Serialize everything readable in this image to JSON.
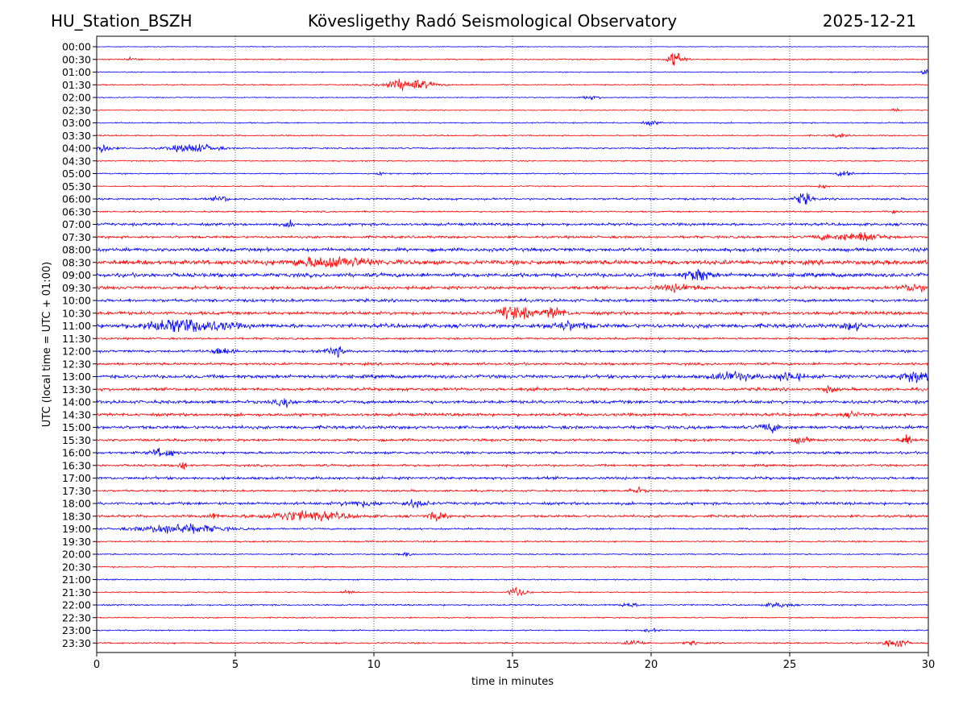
{
  "header": {
    "station": "HU_Station_BSZH",
    "observatory": "Kövesligethy Radó Seismological Observatory",
    "date": "2025-12-21"
  },
  "chart_data": {
    "type": "line",
    "title": "Kövesligethy Radó Seismological Observatory",
    "xlabel": "time in minutes",
    "ylabel": "UTC (local time = UTC + 01:00)",
    "xlim": [
      0,
      30
    ],
    "xticks": [
      "0",
      "5",
      "10",
      "15",
      "20",
      "25",
      "30"
    ],
    "grid": "vertical dotted at 5-minute intervals",
    "colors": {
      "even_row": "#0000ff",
      "odd_row": "#ff0000",
      "axis": "#000000"
    },
    "rows": [
      {
        "label": "00:00",
        "noise": 0.3,
        "events": []
      },
      {
        "label": "00:30",
        "noise": 0.5,
        "events": [
          {
            "t": 20.9,
            "amp": 7,
            "dur": 0.4
          },
          {
            "t": 1.3,
            "amp": 1.5,
            "dur": 0.3
          }
        ]
      },
      {
        "label": "01:00",
        "noise": 0.4,
        "events": [
          {
            "t": 29.9,
            "amp": 2,
            "dur": 0.2
          }
        ]
      },
      {
        "label": "01:30",
        "noise": 0.5,
        "events": [
          {
            "t": 11.2,
            "amp": 5,
            "dur": 1.2
          }
        ]
      },
      {
        "label": "02:00",
        "noise": 0.4,
        "events": [
          {
            "t": 17.8,
            "amp": 1.5,
            "dur": 0.5
          }
        ]
      },
      {
        "label": "02:30",
        "noise": 0.4,
        "events": [
          {
            "t": 28.8,
            "amp": 1.5,
            "dur": 0.2
          }
        ]
      },
      {
        "label": "03:00",
        "noise": 0.5,
        "events": [
          {
            "t": 20.0,
            "amp": 1.5,
            "dur": 0.4
          }
        ]
      },
      {
        "label": "03:30",
        "noise": 0.5,
        "events": [
          {
            "t": 26.8,
            "amp": 1.5,
            "dur": 0.4
          }
        ]
      },
      {
        "label": "04:00",
        "noise": 0.6,
        "events": [
          {
            "t": 0.2,
            "amp": 3.5,
            "dur": 0.5
          },
          {
            "t": 3.5,
            "amp": 3.5,
            "dur": 1.2
          }
        ]
      },
      {
        "label": "04:30",
        "noise": 0.5,
        "events": []
      },
      {
        "label": "05:00",
        "noise": 0.5,
        "events": [
          {
            "t": 27.0,
            "amp": 2.5,
            "dur": 0.4
          },
          {
            "t": 10.2,
            "amp": 1.5,
            "dur": 0.2
          }
        ]
      },
      {
        "label": "05:30",
        "noise": 0.5,
        "events": [
          {
            "t": 26.2,
            "amp": 2,
            "dur": 0.2
          }
        ]
      },
      {
        "label": "06:00",
        "noise": 0.8,
        "events": [
          {
            "t": 25.5,
            "amp": 5,
            "dur": 0.4
          },
          {
            "t": 4.5,
            "amp": 2,
            "dur": 0.4
          }
        ]
      },
      {
        "label": "06:30",
        "noise": 0.6,
        "events": [
          {
            "t": 28.7,
            "amp": 1.5,
            "dur": 0.3
          }
        ]
      },
      {
        "label": "07:00",
        "noise": 1.1,
        "events": [
          {
            "t": 7.0,
            "amp": 2,
            "dur": 0.3
          }
        ]
      },
      {
        "label": "07:30",
        "noise": 1.0,
        "events": [
          {
            "t": 27.6,
            "amp": 4,
            "dur": 1.0
          },
          {
            "t": 26.3,
            "amp": 2,
            "dur": 0.6
          }
        ]
      },
      {
        "label": "08:00",
        "noise": 1.4,
        "events": []
      },
      {
        "label": "08:30",
        "noise": 1.8,
        "events": [
          {
            "t": 8.5,
            "amp": 4,
            "dur": 2.0
          }
        ]
      },
      {
        "label": "09:00",
        "noise": 1.6,
        "events": [
          {
            "t": 21.7,
            "amp": 5,
            "dur": 0.6
          }
        ]
      },
      {
        "label": "09:30",
        "noise": 1.3,
        "events": [
          {
            "t": 29.5,
            "amp": 3,
            "dur": 0.6
          },
          {
            "t": 21.0,
            "amp": 2.5,
            "dur": 1.0
          }
        ]
      },
      {
        "label": "10:00",
        "noise": 1.2,
        "events": []
      },
      {
        "label": "10:30",
        "noise": 1.3,
        "events": [
          {
            "t": 14.8,
            "amp": 5,
            "dur": 0.4
          },
          {
            "t": 15.3,
            "amp": 5,
            "dur": 0.6
          },
          {
            "t": 16.5,
            "amp": 5,
            "dur": 0.5
          }
        ]
      },
      {
        "label": "11:00",
        "noise": 1.6,
        "events": [
          {
            "t": 3.2,
            "amp": 6,
            "dur": 2.0
          },
          {
            "t": 17.0,
            "amp": 3,
            "dur": 1.0
          },
          {
            "t": 27.3,
            "amp": 3,
            "dur": 0.5
          }
        ]
      },
      {
        "label": "11:30",
        "noise": 0.8,
        "events": []
      },
      {
        "label": "12:00",
        "noise": 1.0,
        "events": [
          {
            "t": 8.6,
            "amp": 5,
            "dur": 0.4
          },
          {
            "t": 4.6,
            "amp": 3,
            "dur": 0.6
          }
        ]
      },
      {
        "label": "12:30",
        "noise": 1.0,
        "events": []
      },
      {
        "label": "13:00",
        "noise": 1.4,
        "events": [
          {
            "t": 29.6,
            "amp": 5,
            "dur": 0.8
          },
          {
            "t": 25.0,
            "amp": 4,
            "dur": 0.6
          },
          {
            "t": 23.0,
            "amp": 3,
            "dur": 1.0
          }
        ]
      },
      {
        "label": "13:30",
        "noise": 1.2,
        "events": [
          {
            "t": 26.4,
            "amp": 2.5,
            "dur": 0.3
          },
          {
            "t": 15.8,
            "amp": 2,
            "dur": 0.3
          }
        ]
      },
      {
        "label": "14:00",
        "noise": 1.3,
        "events": [
          {
            "t": 6.8,
            "amp": 3.5,
            "dur": 0.4
          }
        ]
      },
      {
        "label": "14:30",
        "noise": 1.2,
        "events": [
          {
            "t": 27.3,
            "amp": 2,
            "dur": 0.4
          }
        ]
      },
      {
        "label": "15:00",
        "noise": 1.3,
        "events": [
          {
            "t": 24.3,
            "amp": 3.5,
            "dur": 0.5
          }
        ]
      },
      {
        "label": "15:30",
        "noise": 1.0,
        "events": [
          {
            "t": 29.2,
            "amp": 3.5,
            "dur": 0.3
          },
          {
            "t": 25.4,
            "amp": 2.5,
            "dur": 0.4
          }
        ]
      },
      {
        "label": "16:00",
        "noise": 1.0,
        "events": [
          {
            "t": 2.4,
            "amp": 3.5,
            "dur": 0.6
          }
        ]
      },
      {
        "label": "16:30",
        "noise": 0.9,
        "events": [
          {
            "t": 3.1,
            "amp": 3,
            "dur": 0.2
          }
        ]
      },
      {
        "label": "17:00",
        "noise": 1.1,
        "events": []
      },
      {
        "label": "17:30",
        "noise": 0.8,
        "events": [
          {
            "t": 19.5,
            "amp": 2,
            "dur": 0.4
          }
        ]
      },
      {
        "label": "18:00",
        "noise": 1.1,
        "events": [
          {
            "t": 11.5,
            "amp": 2.5,
            "dur": 0.6
          },
          {
            "t": 9.5,
            "amp": 2,
            "dur": 1.0
          }
        ]
      },
      {
        "label": "18:30",
        "noise": 1.0,
        "events": [
          {
            "t": 7.5,
            "amp": 4,
            "dur": 2.0
          },
          {
            "t": 12.3,
            "amp": 4,
            "dur": 0.4
          },
          {
            "t": 4.2,
            "amp": 2,
            "dur": 0.3
          }
        ]
      },
      {
        "label": "19:00",
        "noise": 0.7,
        "events": [
          {
            "t": 3.0,
            "amp": 4,
            "dur": 2.0
          }
        ]
      },
      {
        "label": "19:30",
        "noise": 0.6,
        "events": []
      },
      {
        "label": "20:00",
        "noise": 0.5,
        "events": [
          {
            "t": 11.2,
            "amp": 1.5,
            "dur": 0.3
          }
        ]
      },
      {
        "label": "20:30",
        "noise": 0.5,
        "events": []
      },
      {
        "label": "21:00",
        "noise": 0.5,
        "events": []
      },
      {
        "label": "21:30",
        "noise": 0.5,
        "events": [
          {
            "t": 15.2,
            "amp": 5,
            "dur": 0.4
          },
          {
            "t": 9.1,
            "amp": 1.5,
            "dur": 0.3
          }
        ]
      },
      {
        "label": "22:00",
        "noise": 0.6,
        "events": [
          {
            "t": 19.2,
            "amp": 2,
            "dur": 0.4
          },
          {
            "t": 24.6,
            "amp": 2,
            "dur": 0.6
          }
        ]
      },
      {
        "label": "22:30",
        "noise": 0.5,
        "events": []
      },
      {
        "label": "23:00",
        "noise": 0.5,
        "events": [
          {
            "t": 20.0,
            "amp": 1.5,
            "dur": 0.3
          }
        ]
      },
      {
        "label": "23:30",
        "noise": 0.6,
        "events": [
          {
            "t": 28.8,
            "amp": 5,
            "dur": 0.5
          },
          {
            "t": 19.4,
            "amp": 2,
            "dur": 0.5
          },
          {
            "t": 21.5,
            "amp": 2,
            "dur": 0.3
          }
        ]
      }
    ]
  }
}
